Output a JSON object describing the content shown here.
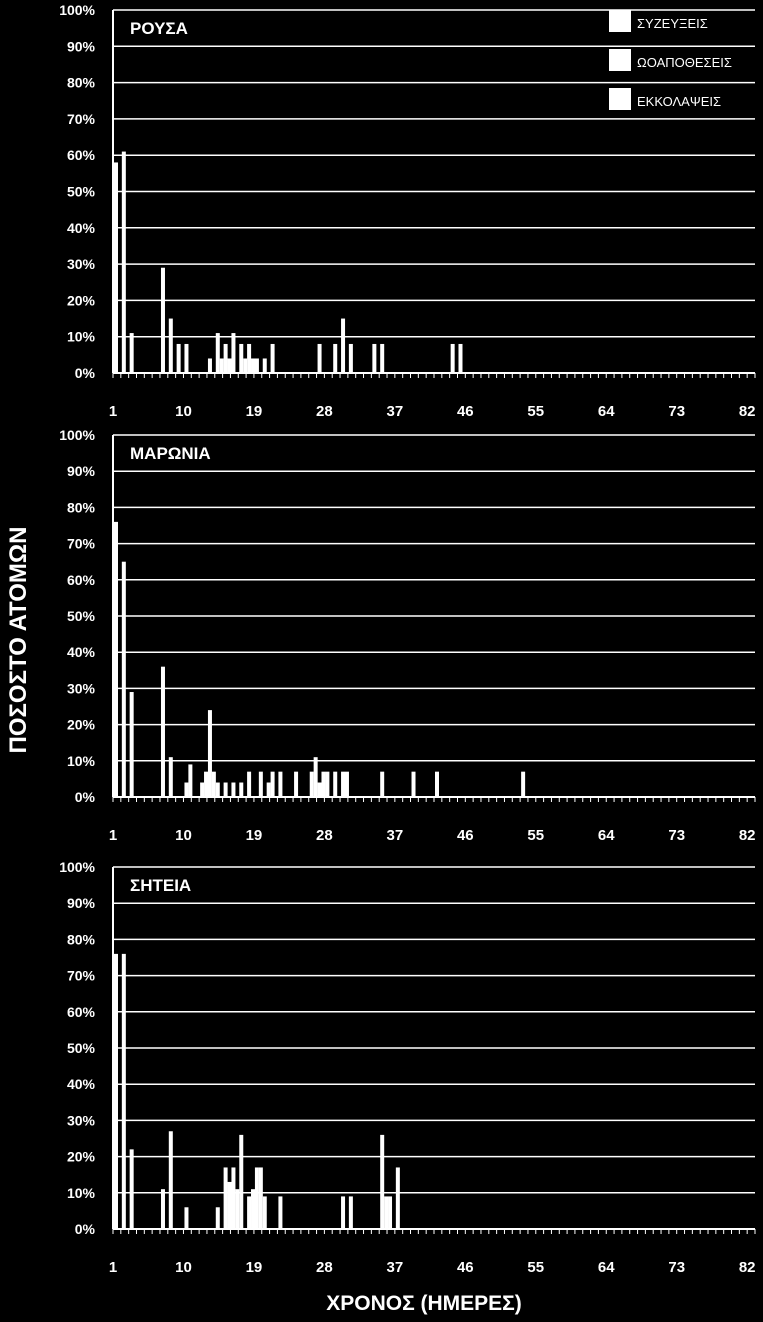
{
  "figure": {
    "ylabel": "ΠΟΣΟΣΤΟ ΑΤΟΜΩΝ",
    "xlabel": "ΧΡΟΝΟΣ (ΗΜΕΡΕΣ)",
    "background_color": "#000000",
    "foreground_color": "#ffffff"
  },
  "legend": {
    "placement": "top-right",
    "entries": [
      "ΣΥΖΕΥΞΕΙΣ",
      "ΩΟΑΠΟΘΕΣΕΙΣ",
      "ΕΚΚΟΛΑΨΕΙΣ"
    ]
  },
  "chart_data": [
    {
      "type": "bar",
      "title": "ΡΟΥΣΑ",
      "xlim": [
        1,
        83
      ],
      "ylim": [
        0,
        100
      ],
      "x_ticks": [
        "1",
        "10",
        "19",
        "28",
        "37",
        "46",
        "55",
        "64",
        "73",
        "82"
      ],
      "y_ticks": [
        "0%",
        "10%",
        "20%",
        "30%",
        "40%",
        "50%",
        "60%",
        "70%",
        "80%",
        "90%",
        "100%"
      ],
      "grid": true,
      "bars": [
        {
          "x": 1,
          "value": 58
        },
        {
          "x": 2,
          "value": 61
        },
        {
          "x": 3,
          "value": 11
        },
        {
          "x": 7,
          "value": 29
        },
        {
          "x": 8,
          "value": 15
        },
        {
          "x": 9,
          "value": 8
        },
        {
          "x": 10,
          "value": 8
        },
        {
          "x": 13,
          "value": 4
        },
        {
          "x": 14,
          "value": 11
        },
        {
          "x": 14.5,
          "value": 4
        },
        {
          "x": 15,
          "value": 8
        },
        {
          "x": 15.5,
          "value": 4
        },
        {
          "x": 16,
          "value": 11
        },
        {
          "x": 17,
          "value": 8
        },
        {
          "x": 17.5,
          "value": 4
        },
        {
          "x": 18,
          "value": 8
        },
        {
          "x": 18.5,
          "value": 4
        },
        {
          "x": 19,
          "value": 4
        },
        {
          "x": 20,
          "value": 4
        },
        {
          "x": 21,
          "value": 8
        },
        {
          "x": 27,
          "value": 8
        },
        {
          "x": 29,
          "value": 8
        },
        {
          "x": 30,
          "value": 15
        },
        {
          "x": 31,
          "value": 8
        },
        {
          "x": 34,
          "value": 8
        },
        {
          "x": 35,
          "value": 8
        },
        {
          "x": 44,
          "value": 8
        },
        {
          "x": 45,
          "value": 8
        }
      ]
    },
    {
      "type": "bar",
      "title": "ΜΑΡΩΝΙΑ",
      "xlim": [
        1,
        83
      ],
      "ylim": [
        0,
        100
      ],
      "x_ticks": [
        "1",
        "10",
        "19",
        "28",
        "37",
        "46",
        "55",
        "64",
        "73",
        "82"
      ],
      "y_ticks": [
        "0%",
        "10%",
        "20%",
        "30%",
        "40%",
        "50%",
        "60%",
        "70%",
        "80%",
        "90%",
        "100%"
      ],
      "grid": true,
      "bars": [
        {
          "x": 1,
          "value": 76
        },
        {
          "x": 2,
          "value": 65
        },
        {
          "x": 3,
          "value": 29
        },
        {
          "x": 7,
          "value": 36
        },
        {
          "x": 8,
          "value": 11
        },
        {
          "x": 10,
          "value": 4
        },
        {
          "x": 10.5,
          "value": 9
        },
        {
          "x": 12,
          "value": 4
        },
        {
          "x": 12.5,
          "value": 7
        },
        {
          "x": 13,
          "value": 24
        },
        {
          "x": 13.5,
          "value": 7
        },
        {
          "x": 14,
          "value": 4
        },
        {
          "x": 15,
          "value": 4
        },
        {
          "x": 16,
          "value": 4
        },
        {
          "x": 17,
          "value": 4
        },
        {
          "x": 18,
          "value": 7
        },
        {
          "x": 19.5,
          "value": 7
        },
        {
          "x": 20.5,
          "value": 4
        },
        {
          "x": 21,
          "value": 7
        },
        {
          "x": 22,
          "value": 7
        },
        {
          "x": 24,
          "value": 7
        },
        {
          "x": 26,
          "value": 7
        },
        {
          "x": 26.5,
          "value": 11
        },
        {
          "x": 27,
          "value": 4
        },
        {
          "x": 27.5,
          "value": 7
        },
        {
          "x": 28,
          "value": 7
        },
        {
          "x": 29,
          "value": 7
        },
        {
          "x": 30,
          "value": 7
        },
        {
          "x": 30.5,
          "value": 7
        },
        {
          "x": 35,
          "value": 7
        },
        {
          "x": 39,
          "value": 7
        },
        {
          "x": 42,
          "value": 7
        },
        {
          "x": 53,
          "value": 7
        }
      ]
    },
    {
      "type": "bar",
      "title": "ΣΗΤΕΙΑ",
      "xlim": [
        1,
        83
      ],
      "ylim": [
        0,
        100
      ],
      "x_ticks": [
        "1",
        "10",
        "19",
        "28",
        "37",
        "46",
        "55",
        "64",
        "73",
        "82"
      ],
      "y_ticks": [
        "0%",
        "10%",
        "20%",
        "30%",
        "40%",
        "50%",
        "60%",
        "70%",
        "80%",
        "90%",
        "100%"
      ],
      "grid": true,
      "bars": [
        {
          "x": 1,
          "value": 76
        },
        {
          "x": 2,
          "value": 76
        },
        {
          "x": 3,
          "value": 22
        },
        {
          "x": 7,
          "value": 11
        },
        {
          "x": 8,
          "value": 27
        },
        {
          "x": 10,
          "value": 6
        },
        {
          "x": 14,
          "value": 6
        },
        {
          "x": 15,
          "value": 17
        },
        {
          "x": 15.5,
          "value": 13
        },
        {
          "x": 16,
          "value": 17
        },
        {
          "x": 16.5,
          "value": 11
        },
        {
          "x": 17,
          "value": 26
        },
        {
          "x": 18,
          "value": 9
        },
        {
          "x": 18.5,
          "value": 11
        },
        {
          "x": 19,
          "value": 17
        },
        {
          "x": 19.5,
          "value": 17
        },
        {
          "x": 20,
          "value": 9
        },
        {
          "x": 22,
          "value": 9
        },
        {
          "x": 30,
          "value": 9
        },
        {
          "x": 31,
          "value": 9
        },
        {
          "x": 35,
          "value": 26
        },
        {
          "x": 35.5,
          "value": 9
        },
        {
          "x": 36,
          "value": 9
        },
        {
          "x": 37,
          "value": 17
        }
      ]
    }
  ]
}
